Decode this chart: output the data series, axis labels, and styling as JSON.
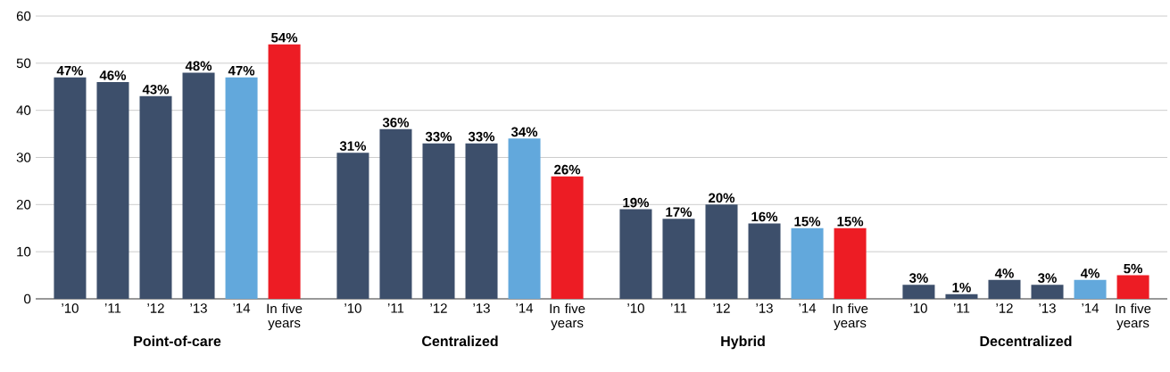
{
  "chart_data": [
    {
      "type": "bar",
      "xlabel": "Point-of-care",
      "categories": [
        "’10",
        "’11",
        "’12",
        "’13",
        "’14",
        "In five years"
      ],
      "values": [
        47,
        46,
        43,
        48,
        47,
        54
      ],
      "value_labels": [
        "47%",
        "46%",
        "43%",
        "48%",
        "47%",
        "54%"
      ],
      "colors": [
        "#3d4f6b",
        "#3d4f6b",
        "#3d4f6b",
        "#3d4f6b",
        "#62a8dc",
        "#ed1c24"
      ],
      "ylim": [
        0,
        60
      ],
      "yticks": [
        0,
        10,
        20,
        30,
        40,
        50,
        60
      ],
      "grid": "y"
    },
    {
      "type": "bar",
      "xlabel": "Centralized",
      "categories": [
        "’10",
        "’11",
        "’12",
        "’13",
        "’14",
        "In five years"
      ],
      "values": [
        31,
        36,
        33,
        33,
        34,
        26
      ],
      "value_labels": [
        "31%",
        "36%",
        "33%",
        "33%",
        "34%",
        "26%"
      ],
      "colors": [
        "#3d4f6b",
        "#3d4f6b",
        "#3d4f6b",
        "#3d4f6b",
        "#62a8dc",
        "#ed1c24"
      ],
      "ylim": [
        0,
        60
      ],
      "yticks": [
        0,
        10,
        20,
        30,
        40,
        50,
        60
      ],
      "grid": "y",
      "tick_labels": "x"
    },
    {
      "type": "bar",
      "xlabel": "Hybrid",
      "categories": [
        "’10",
        "’11",
        "’12",
        "’13",
        "’14",
        "In five years"
      ],
      "values": [
        19,
        17,
        20,
        16,
        15,
        15
      ],
      "value_labels": [
        "19%",
        "17%",
        "20%",
        "16%",
        "15%",
        "15%"
      ],
      "colors": [
        "#3d4f6b",
        "#3d4f6b",
        "#3d4f6b",
        "#3d4f6b",
        "#62a8dc",
        "#ed1c24"
      ],
      "ylim": [
        0,
        60
      ],
      "yticks": [
        0,
        10,
        20,
        30,
        40,
        50,
        60
      ],
      "grid": "y",
      "tick_labels": "x"
    },
    {
      "type": "bar",
      "xlabel": "Decentralized",
      "categories": [
        "’10",
        "’11",
        "’12",
        "’13",
        "’14",
        "In five years"
      ],
      "values": [
        3,
        1,
        4,
        3,
        4,
        5
      ],
      "value_labels": [
        "3%",
        "1%",
        "4%",
        "3%",
        "4%",
        "5%"
      ],
      "colors": [
        "#3d4f6b",
        "#3d4f6b",
        "#3d4f6b",
        "#3d4f6b",
        "#62a8dc",
        "#ed1c24"
      ],
      "ylim": [
        0,
        60
      ],
      "yticks": [
        0,
        10,
        20,
        30,
        40,
        50,
        60
      ],
      "grid": "y",
      "tick_labels": "x"
    }
  ]
}
